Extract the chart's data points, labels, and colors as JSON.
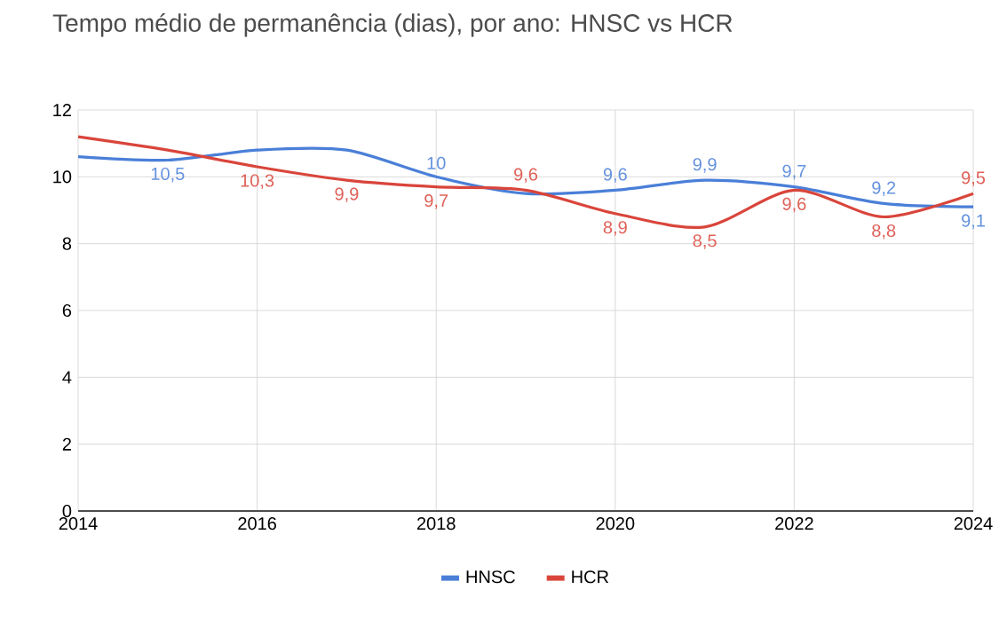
{
  "chart_data": {
    "type": "line",
    "title": "Tempo médio de permanência (dias), por ano: HNSC vs HCR",
    "x": [
      2014,
      2015,
      2016,
      2017,
      2018,
      2019,
      2020,
      2021,
      2022,
      2023,
      2024
    ],
    "series": [
      {
        "name": "HNSC",
        "color": "#4a7fd8",
        "values": [
          10.6,
          10.5,
          10.8,
          10.8,
          10.0,
          9.5,
          9.6,
          9.9,
          9.7,
          9.2,
          9.1
        ],
        "value_labels": [
          null,
          "10,5",
          null,
          null,
          "10",
          null,
          "9,6",
          "9,9",
          "9,7",
          "9,2",
          "9,1"
        ]
      },
      {
        "name": "HCR",
        "color": "#d9453b",
        "values": [
          11.2,
          10.8,
          10.3,
          9.9,
          9.7,
          9.6,
          8.9,
          8.5,
          9.6,
          8.8,
          9.5
        ],
        "value_labels": [
          null,
          null,
          "10,3",
          "9,9",
          "9,7",
          "9,6",
          "8,9",
          "8,5",
          "9,6",
          "8,8",
          "9,5"
        ]
      }
    ],
    "xlim": [
      2014,
      2024
    ],
    "xticks": [
      2014,
      2016,
      2018,
      2020,
      2022,
      2024
    ],
    "ylim": [
      0,
      12
    ],
    "yticks": [
      0,
      2,
      4,
      6,
      8,
      10,
      12
    ],
    "grid": true,
    "legend": "bottom",
    "marker": "none",
    "line_style": "solid"
  }
}
